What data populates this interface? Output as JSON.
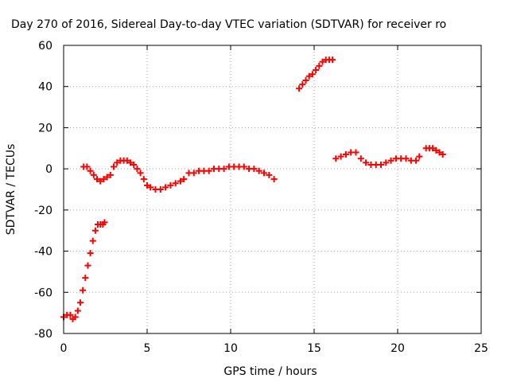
{
  "chart_data": {
    "type": "scatter",
    "title": "Day 270 of 2016, Sidereal Day-to-day VTEC variation (SDTVAR) for receiver ro",
    "xlabel": "GPS time / hours",
    "ylabel": "SDTVAR / TECUs",
    "xlim": [
      0,
      25
    ],
    "ylim": [
      -80,
      60
    ],
    "x_ticks": [
      0,
      5,
      10,
      15,
      20,
      25
    ],
    "y_ticks": [
      -80,
      -60,
      -40,
      -20,
      0,
      20,
      40,
      60
    ],
    "x_tick_labels": [
      "0",
      "5",
      "10",
      "15",
      "20",
      "25"
    ],
    "y_tick_labels": [
      "-80",
      "-60",
      "-40",
      "-20",
      "0",
      "20",
      "40",
      "60"
    ],
    "grid": true,
    "legend": "none",
    "marker": "plus",
    "series_color": "#ff0000",
    "series": [
      {
        "x": [
          0.0,
          0.2,
          0.4,
          0.55,
          0.7,
          0.85,
          1.0,
          1.15,
          1.3,
          1.45,
          1.6,
          1.75,
          1.9,
          2.05,
          2.2,
          2.35,
          2.45
        ],
        "y": [
          -72,
          -71,
          -71,
          -73,
          -72,
          -69,
          -65,
          -59,
          -53,
          -47,
          -41,
          -35,
          -30,
          -27,
          -27,
          -27,
          -26
        ]
      },
      {
        "x": [
          1.2,
          1.4,
          1.6,
          1.8,
          2.0,
          2.2,
          2.4,
          2.6,
          2.8
        ],
        "y": [
          1,
          1,
          -1,
          -3,
          -5,
          -6,
          -5,
          -4,
          -3
        ]
      },
      {
        "x": [
          3.0,
          3.2,
          3.4,
          3.6,
          3.8,
          4.0,
          4.2,
          4.4,
          4.6,
          4.8,
          5.0,
          5.2,
          5.5,
          5.8,
          6.1,
          6.4,
          6.7,
          7.0,
          7.2
        ],
        "y": [
          1,
          3,
          4,
          4,
          4,
          3,
          2,
          0,
          -2,
          -5,
          -8,
          -9,
          -10,
          -10,
          -9,
          -8,
          -7,
          -6,
          -5
        ]
      },
      {
        "x": [
          7.5,
          7.8,
          8.1,
          8.4,
          8.7,
          9.0,
          9.3,
          9.6,
          9.9,
          10.2,
          10.5,
          10.8,
          11.1,
          11.4,
          11.7,
          12.0,
          12.3,
          12.6
        ],
        "y": [
          -2,
          -2,
          -1,
          -1,
          -1,
          0,
          0,
          0,
          1,
          1,
          1,
          1,
          0,
          0,
          -1,
          -2,
          -3,
          -5
        ]
      },
      {
        "x": [
          14.1,
          14.3,
          14.5,
          14.7,
          14.9,
          15.1,
          15.3,
          15.5,
          15.7,
          15.9,
          16.1
        ],
        "y": [
          39,
          41,
          43,
          45,
          46,
          48,
          50,
          52,
          53,
          53,
          53
        ]
      },
      {
        "x": [
          16.3,
          16.6,
          16.9,
          17.2,
          17.5,
          17.8,
          18.1,
          18.4,
          18.7,
          19.0,
          19.3,
          19.6,
          19.9,
          20.2,
          20.5,
          20.8,
          21.1,
          21.3
        ],
        "y": [
          5,
          6,
          7,
          8,
          8,
          5,
          3,
          2,
          2,
          2,
          3,
          4,
          5,
          5,
          5,
          4,
          4,
          6
        ]
      },
      {
        "x": [
          21.7,
          21.9,
          22.1,
          22.3,
          22.5,
          22.7
        ],
        "y": [
          10,
          10,
          10,
          9,
          8,
          7
        ]
      }
    ]
  }
}
